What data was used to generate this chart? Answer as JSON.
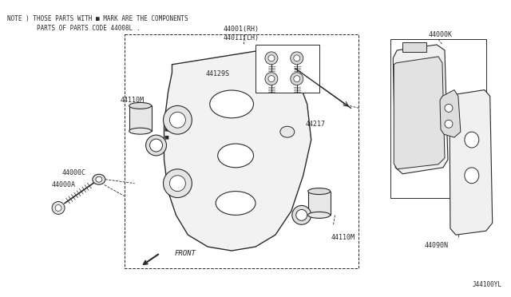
{
  "bg_color": "#ffffff",
  "line_color": "#2a2a2a",
  "note_text1": "NOTE ) THOSE PARTS WITH ■ MARK ARE THE COMPONENTS",
  "note_text2": "        PARTS OF PARTS CODE 44008L .",
  "diagram_id": "J44100YL",
  "fig_w": 6.4,
  "fig_h": 3.72,
  "dpi": 100
}
